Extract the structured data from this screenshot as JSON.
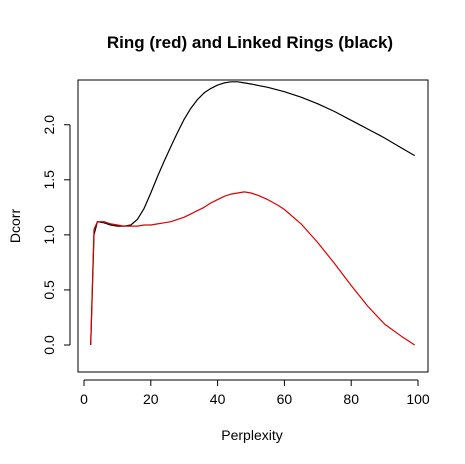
{
  "chart_data": {
    "type": "line",
    "title": "Ring (red) and Linked Rings (black)",
    "xlabel": "Perplexity",
    "ylabel": "Dcorr",
    "xlim": [
      0,
      100
    ],
    "ylim": [
      -0.05,
      2.42
    ],
    "xticks": [
      0,
      20,
      40,
      60,
      80,
      100
    ],
    "yticks": [
      0.0,
      0.5,
      1.0,
      1.5,
      2.0
    ],
    "xtick_labels": [
      "0",
      "20",
      "40",
      "60",
      "80",
      "100"
    ],
    "ytick_labels": [
      "0.0",
      "0.5",
      "1.0",
      "1.5",
      "2.0"
    ],
    "grid": false,
    "series": [
      {
        "color": "#000000",
        "x": [
          2,
          3,
          4,
          6,
          8,
          10,
          12,
          14,
          16,
          18,
          20,
          22,
          24,
          26,
          28,
          30,
          32,
          34,
          36,
          38,
          40,
          42,
          44,
          46,
          48,
          50,
          55,
          60,
          65,
          70,
          75,
          80,
          85,
          90,
          95,
          99
        ],
        "y": [
          0.0,
          1.0,
          1.12,
          1.11,
          1.09,
          1.08,
          1.08,
          1.09,
          1.14,
          1.24,
          1.38,
          1.53,
          1.67,
          1.8,
          1.93,
          2.05,
          2.15,
          2.23,
          2.29,
          2.33,
          2.36,
          2.38,
          2.39,
          2.39,
          2.38,
          2.37,
          2.34,
          2.3,
          2.25,
          2.19,
          2.12,
          2.04,
          1.96,
          1.88,
          1.79,
          1.72
        ]
      },
      {
        "color": "#dd0000",
        "x": [
          2,
          3,
          4,
          6,
          8,
          10,
          12,
          14,
          16,
          18,
          20,
          22,
          24,
          26,
          28,
          30,
          32,
          34,
          36,
          38,
          40,
          42,
          44,
          46,
          48,
          50,
          52,
          55,
          58,
          60,
          65,
          70,
          75,
          80,
          85,
          90,
          95,
          99
        ],
        "y": [
          0.0,
          1.05,
          1.12,
          1.12,
          1.1,
          1.09,
          1.08,
          1.08,
          1.08,
          1.09,
          1.09,
          1.1,
          1.11,
          1.12,
          1.14,
          1.16,
          1.19,
          1.22,
          1.25,
          1.29,
          1.32,
          1.35,
          1.37,
          1.38,
          1.39,
          1.38,
          1.36,
          1.32,
          1.27,
          1.23,
          1.1,
          0.93,
          0.74,
          0.54,
          0.35,
          0.19,
          0.08,
          0.0
        ]
      }
    ]
  }
}
